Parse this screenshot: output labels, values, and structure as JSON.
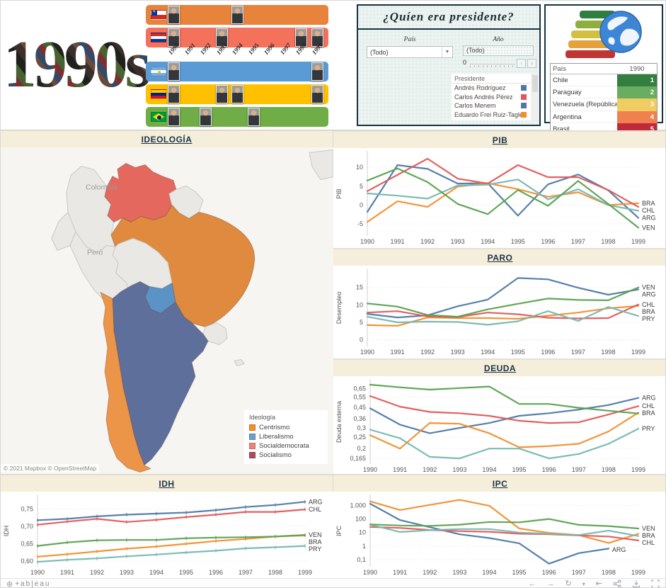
{
  "decade": {
    "title": "1990s"
  },
  "timeline": {
    "years": [
      "1990",
      "1991",
      "1992",
      "1993",
      "1994",
      "1995",
      "1996",
      "1997",
      "1998",
      "1999"
    ],
    "bars": [
      {
        "country": "Chile",
        "flag": "chile",
        "color": "#E8833C",
        "photo_years": [
          1990,
          1994
        ]
      },
      {
        "country": "Paraguay",
        "flag": "paraguay",
        "color": "#F4715C",
        "photo_years": [
          1990,
          1993,
          1998,
          1999
        ]
      },
      {
        "country": "Argentina",
        "flag": "argentina",
        "color": "#5B9BD5",
        "photo_years": [
          1990,
          1999
        ]
      },
      {
        "country": "Venezuela",
        "flag": "venezuela",
        "color": "#FFC000",
        "photo_years": [
          1990,
          1993,
          1994,
          1999
        ]
      },
      {
        "country": "Brasil",
        "flag": "brazil",
        "color": "#70AD47",
        "photo_years": [
          1990,
          1992,
          1995
        ]
      }
    ]
  },
  "quien_panel": {
    "title": "¿Quíen era presidente?",
    "pais_filter": {
      "label": "País",
      "value": "(Todo)"
    },
    "ano_filter": {
      "label": "Año",
      "value": "(Todo)",
      "slider_value": "0",
      "prev": "‹",
      "next": "›"
    },
    "presidente_legend": {
      "header": "Presidente",
      "items": [
        {
          "name": "Andrés Rodríguez",
          "color": "#4e79a7"
        },
        {
          "name": "Carlos Andrés Pérez",
          "color": "#e15759"
        },
        {
          "name": "Carlos Menem",
          "color": "#4e79a7"
        },
        {
          "name": "Eduardo Frei Ruiz-Tagle",
          "color": "#f28e2b"
        }
      ]
    }
  },
  "ranking_panel": {
    "columns": [
      "País",
      "1990"
    ],
    "rows": [
      {
        "pais": "Chile",
        "rank": "1",
        "color": "#337f3f"
      },
      {
        "pais": "Paraguay",
        "rank": "2",
        "color": "#6aac60"
      },
      {
        "pais": "Venezuela (República Boli..",
        "rank": "3",
        "color": "#f0cd61"
      },
      {
        "pais": "Argentina",
        "rank": "4",
        "color": "#f0804e"
      },
      {
        "pais": "Brasil",
        "rank": "5",
        "color": "#bf2a3a"
      }
    ]
  },
  "map_panel": {
    "title": "IDEOLOGÍA",
    "attribution": "© 2021 Mapbox © OpenStreetMap",
    "colombia_label": "Colombia",
    "peru_label": "Perú",
    "legend": {
      "title": "Ideología",
      "items": [
        {
          "label": "Centrismo",
          "color": "#f28e2b"
        },
        {
          "label": "Liberalismo",
          "color": "#6a9ecf"
        },
        {
          "label": "Socialdemocrata",
          "color": "#ee8276"
        },
        {
          "label": "Socialismo",
          "color": "#b0485e"
        }
      ]
    },
    "country_colors": {
      "venezuela": "#e4685e",
      "brazil": "#df8a3e",
      "chile": "#ec9447",
      "argentina": "#5e6f9c",
      "paraguay": "#5b93c7"
    },
    "default_land": "#e9e8e5"
  },
  "series_colors": {
    "ARG": "#4e79a7",
    "BRA": "#f28e2b",
    "CHL": "#e15759",
    "PRY": "#76b7b2",
    "VEN": "#59a14f"
  },
  "chart_data": [
    {
      "key": "pib",
      "type": "line",
      "title": "PIB",
      "ylabel": "PIB",
      "scale": "linear",
      "x": [
        "1990",
        "1991",
        "1992",
        "1993",
        "1994",
        "1995",
        "1996",
        "1997",
        "1998",
        "1999"
      ],
      "ylim": [
        -7.8,
        13.8
      ],
      "yticks": [
        {
          "v": -5,
          "label": "-5"
        },
        {
          "v": 0,
          "label": "0"
        },
        {
          "v": 5,
          "label": "5"
        },
        {
          "v": 10,
          "label": "10"
        }
      ],
      "series": [
        {
          "name": "ARG",
          "values": [
            -1.8,
            10.6,
            9.6,
            5.7,
            5.8,
            -2.8,
            5.5,
            8.1,
            3.9,
            -3.4
          ]
        },
        {
          "name": "BRA",
          "values": [
            -4.5,
            1.0,
            -0.5,
            4.9,
            5.8,
            4.2,
            2.2,
            3.4,
            0.0,
            0.5
          ]
        },
        {
          "name": "CHL",
          "values": [
            3.7,
            8.0,
            12.3,
            7.0,
            5.7,
            10.6,
            7.4,
            7.4,
            4.0,
            -0.5
          ]
        },
        {
          "name": "PRY",
          "values": [
            3.1,
            2.5,
            1.7,
            5.2,
            5.4,
            6.8,
            1.5,
            4.2,
            0.0,
            -1.5
          ]
        },
        {
          "name": "VEN",
          "values": [
            6.5,
            9.7,
            6.1,
            0.3,
            -2.4,
            4.0,
            -0.2,
            6.4,
            0.3,
            -6.0
          ]
        }
      ],
      "end_labels": [
        "BRA",
        "CHL",
        "ARG",
        "VEN"
      ]
    },
    {
      "key": "paro",
      "type": "line",
      "title": "PARO",
      "ylabel": "Desempleo",
      "scale": "linear",
      "x": [
        "1990",
        "1991",
        "1992",
        "1993",
        "1994",
        "1995",
        "1996",
        "1997",
        "1998",
        "1999"
      ],
      "ylim": [
        -1.5,
        19.8
      ],
      "yticks": [
        {
          "v": 0,
          "label": "0"
        },
        {
          "v": 5,
          "label": "5"
        },
        {
          "v": 10,
          "label": "10"
        },
        {
          "v": 15,
          "label": "15"
        }
      ],
      "series": [
        {
          "name": "ARG",
          "values": [
            7.4,
            6.4,
            7.0,
            9.6,
            11.5,
            17.7,
            17.3,
            14.9,
            12.9,
            14.4
          ]
        },
        {
          "name": "BRA",
          "values": [
            4.2,
            4.0,
            6.4,
            6.2,
            6.2,
            6.0,
            6.9,
            7.8,
            9.0,
            9.7
          ]
        },
        {
          "name": "CHL",
          "values": [
            7.8,
            8.2,
            6.7,
            6.5,
            7.8,
            7.3,
            6.3,
            6.1,
            6.2,
            10.1
          ]
        },
        {
          "name": "PRY",
          "values": [
            6.6,
            5.0,
            5.2,
            5.1,
            4.3,
            5.3,
            8.2,
            5.4,
            9.4,
            6.8
          ]
        },
        {
          "name": "VEN",
          "values": [
            10.4,
            9.5,
            7.1,
            6.6,
            8.7,
            10.3,
            11.8,
            11.4,
            11.3,
            15.0
          ]
        }
      ],
      "end_labels": [
        "VEN",
        "ARG",
        "CHL",
        "BRA",
        "PRY"
      ]
    },
    {
      "key": "deuda",
      "type": "line",
      "title": "DEUDA",
      "ylabel": "Deuda externa",
      "scale": "log",
      "x": [
        "1990",
        "1991",
        "1992",
        "1993",
        "1994",
        "1995",
        "1996",
        "1997",
        "1998",
        "1999"
      ],
      "ylim": [
        0.152,
        0.75
      ],
      "yticks": [
        {
          "v": 0.165,
          "label": "0,165"
        },
        {
          "v": 0.2,
          "label": "0,2"
        },
        {
          "v": 0.25,
          "label": "0,25"
        },
        {
          "v": 0.3,
          "label": "0,3"
        },
        {
          "v": 0.36,
          "label": "0,36"
        },
        {
          "v": 0.45,
          "label": "0,45"
        },
        {
          "v": 0.55,
          "label": "0,55"
        },
        {
          "v": 0.65,
          "label": "0,65"
        }
      ],
      "series": [
        {
          "name": "ARG",
          "values": [
            0.44,
            0.32,
            0.27,
            0.3,
            0.33,
            0.38,
            0.4,
            0.43,
            0.47,
            0.54
          ]
        },
        {
          "name": "BRA",
          "values": [
            0.26,
            0.2,
            0.33,
            0.325,
            0.27,
            0.205,
            0.21,
            0.22,
            0.28,
            0.405
          ]
        },
        {
          "name": "CHL",
          "values": [
            0.56,
            0.455,
            0.41,
            0.4,
            0.38,
            0.345,
            0.33,
            0.335,
            0.39,
            0.46
          ]
        },
        {
          "name": "PRY",
          "values": [
            0.29,
            0.245,
            0.17,
            0.165,
            0.2,
            0.2,
            0.165,
            0.18,
            0.22,
            0.295
          ]
        },
        {
          "name": "VEN",
          "values": [
            0.7,
            0.665,
            0.635,
            0.655,
            0.675,
            0.48,
            0.48,
            0.445,
            0.42,
            0.398
          ]
        }
      ],
      "end_labels": [
        "ARG",
        "CHL",
        "BRA",
        "PRY"
      ]
    },
    {
      "key": "idh",
      "type": "line",
      "title": "IDH",
      "ylabel": "IDH",
      "scale": "linear",
      "markers": true,
      "x": [
        "1990",
        "1991",
        "1992",
        "1993",
        "1994",
        "1995",
        "1996",
        "1997",
        "1998",
        "1999"
      ],
      "ylim": [
        0.588,
        0.786
      ],
      "yticks": [
        {
          "v": 0.6,
          "label": "0,60"
        },
        {
          "v": 0.65,
          "label": "0,65"
        },
        {
          "v": 0.7,
          "label": "0,70"
        },
        {
          "v": 0.75,
          "label": "0,75"
        }
      ],
      "series": [
        {
          "name": "ARG",
          "values": [
            0.718,
            0.722,
            0.729,
            0.734,
            0.737,
            0.74,
            0.747,
            0.756,
            0.762,
            0.771
          ]
        },
        {
          "name": "BRA",
          "values": [
            0.613,
            0.62,
            0.628,
            0.636,
            0.642,
            0.65,
            0.658,
            0.664,
            0.671,
            0.674
          ]
        },
        {
          "name": "CHL",
          "values": [
            0.705,
            0.714,
            0.722,
            0.713,
            0.719,
            0.727,
            0.734,
            0.742,
            0.742,
            0.749
          ]
        },
        {
          "name": "PRY",
          "values": [
            0.598,
            0.604,
            0.608,
            0.614,
            0.619,
            0.625,
            0.63,
            0.637,
            0.64,
            0.644
          ]
        },
        {
          "name": "VEN",
          "values": [
            0.644,
            0.654,
            0.66,
            0.661,
            0.661,
            0.666,
            0.668,
            0.669,
            0.671,
            0.6755
          ]
        }
      ],
      "end_labels": [
        "ARG",
        "CHL",
        "VEN",
        "BRA",
        "PRY"
      ]
    },
    {
      "key": "ipc",
      "type": "line",
      "title": "IPC",
      "ylabel": "IPC",
      "scale": "log",
      "x": [
        "1990",
        "1991",
        "1992",
        "1993",
        "1994",
        "1995",
        "1996",
        "1997",
        "1998",
        "1999"
      ],
      "ylim": [
        0.038,
        4500
      ],
      "yticks": [
        {
          "v": 0.1,
          "label": "0,1"
        },
        {
          "v": 1,
          "label": "1"
        },
        {
          "v": 10,
          "label": "10"
        },
        {
          "v": 100,
          "label": "100"
        },
        {
          "v": 1000,
          "label": "1.000"
        }
      ],
      "series": [
        {
          "name": "ARG",
          "values": [
            1344,
            84,
            25,
            7.4,
            3.9,
            1.6,
            0.05,
            0.3,
            0.65,
            null
          ]
        },
        {
          "name": "BRA",
          "values": [
            2000,
            460,
            1100,
            2600,
            950,
            20,
            9.5,
            6.5,
            1.7,
            8
          ]
        },
        {
          "name": "CHL",
          "values": [
            26,
            22,
            15.5,
            12.7,
            11.4,
            8.2,
            7.4,
            6.1,
            5.1,
            2.6
          ]
        },
        {
          "name": "PRY",
          "values": [
            38,
            11,
            15,
            18,
            18,
            10,
            8,
            6.5,
            14,
            5.5
          ]
        },
        {
          "name": "VEN",
          "values": [
            40,
            33,
            31,
            38,
            60,
            57,
            100,
            37,
            30,
            20
          ]
        }
      ],
      "end_labels": [
        "VEN",
        "BRA",
        "CHL",
        "ARG"
      ]
    }
  ],
  "footer": {
    "logo_text": "+ab|eau",
    "icon_names": [
      "undo-icon",
      "redo-icon",
      "replay-icon",
      "more-icon",
      "revert-icon",
      "share-icon",
      "download-icon",
      "fullscreen-icon"
    ]
  }
}
